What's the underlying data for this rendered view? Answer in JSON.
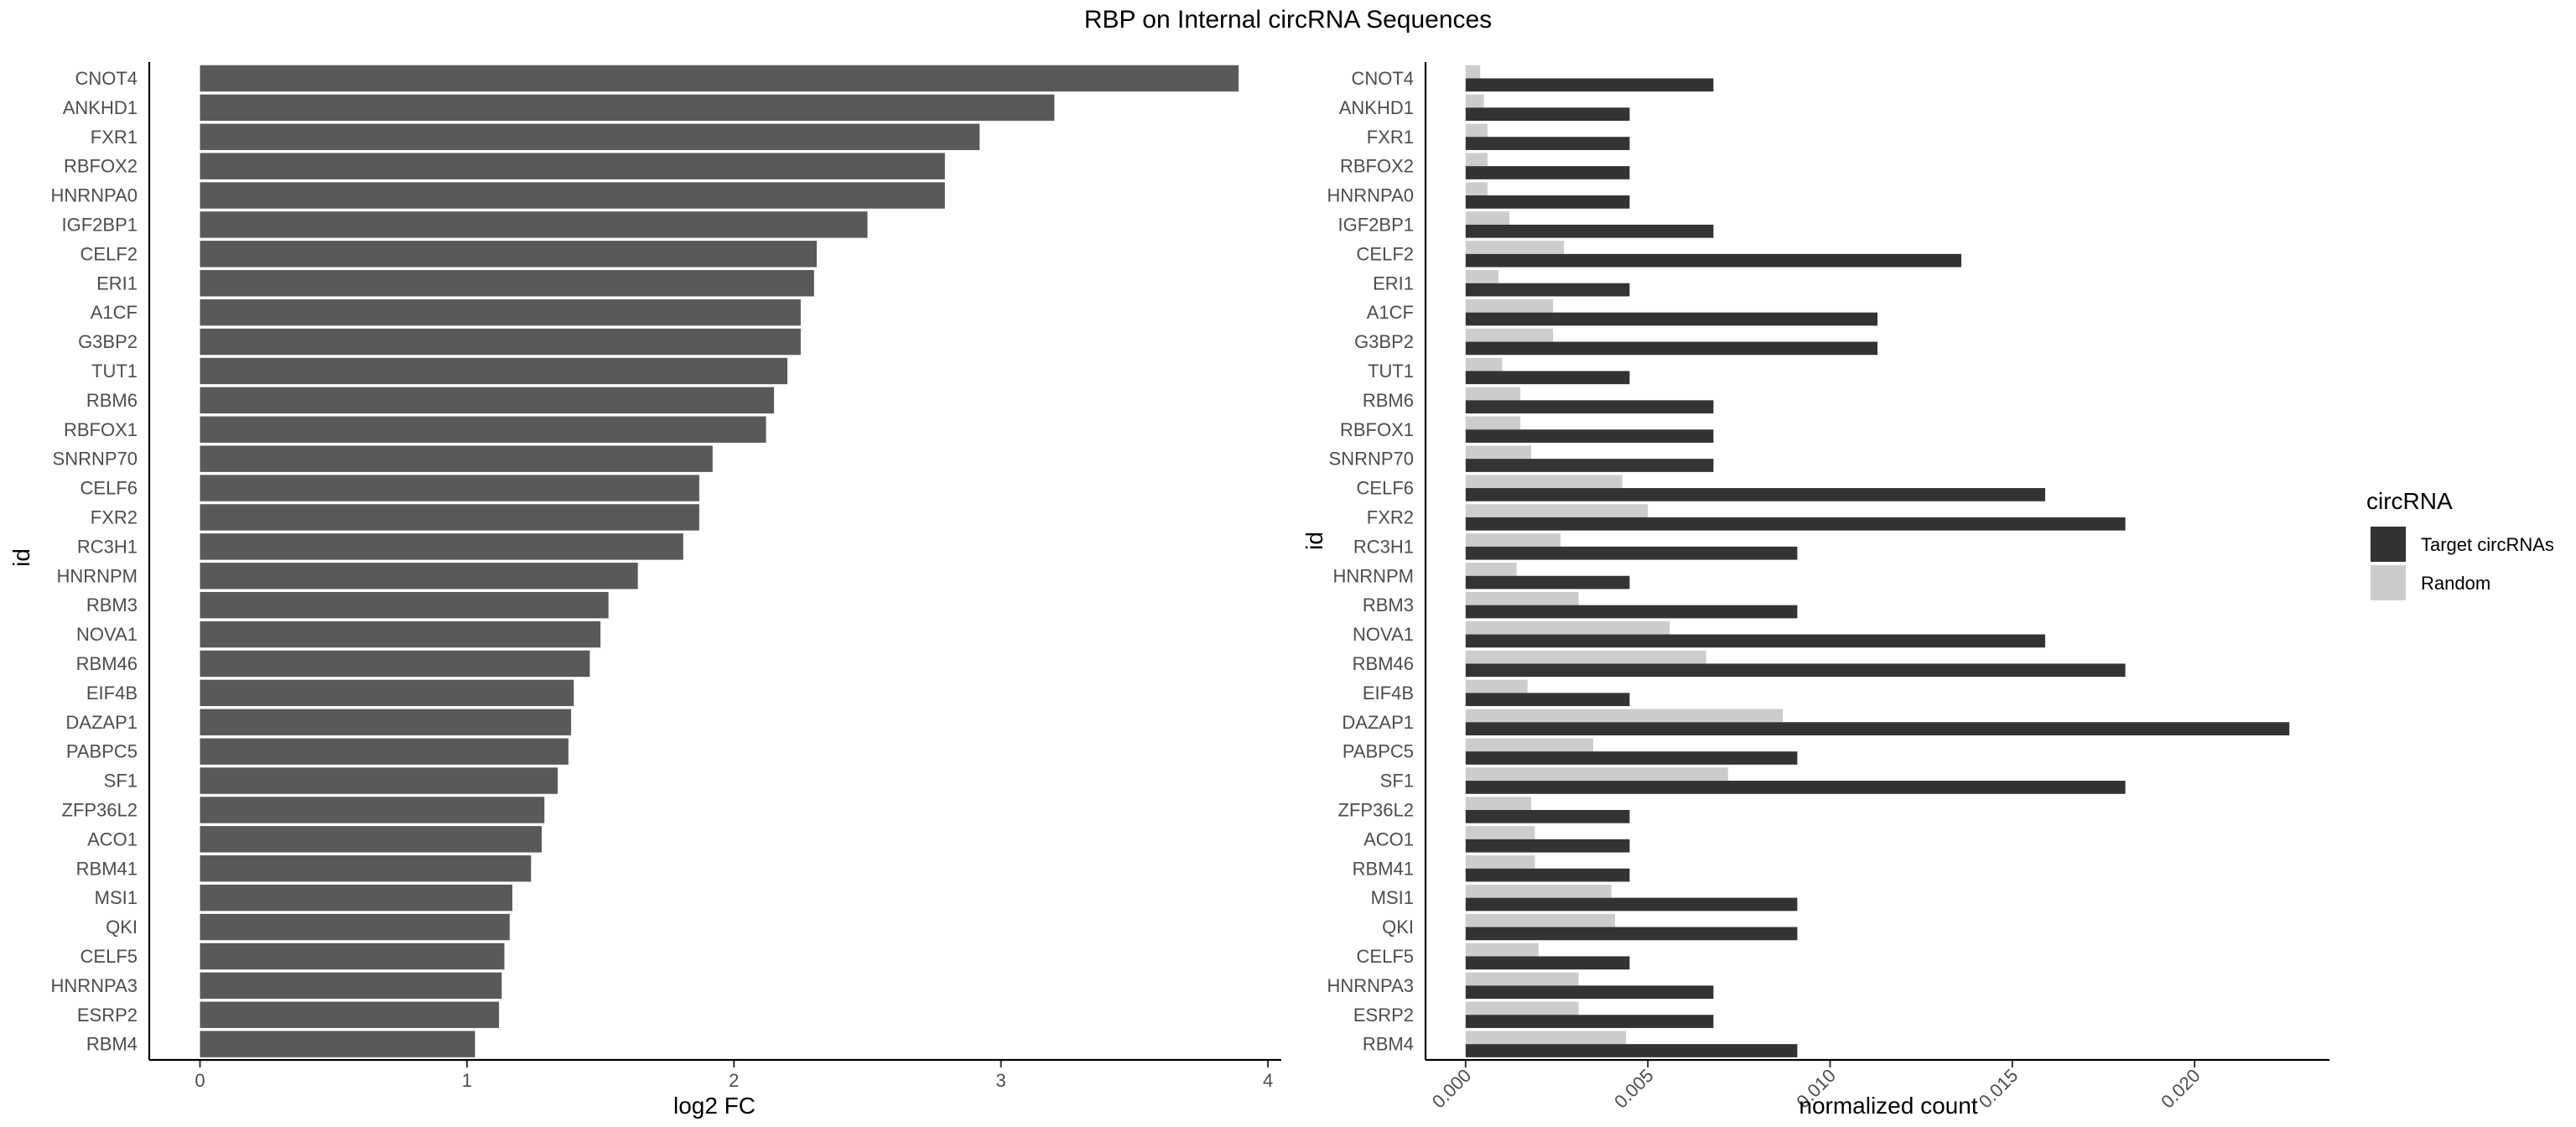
{
  "figure_title": "RBP on Internal circRNA Sequences",
  "colors": {
    "bar_left": "#595959",
    "target": "#333333",
    "random": "#cccccc",
    "axis": "#000000",
    "tick_text": "#4d4d4d"
  },
  "chart_data": [
    {
      "type": "bar",
      "orientation": "horizontal",
      "categories": [
        "CNOT4",
        "ANKHD1",
        "FXR1",
        "RBFOX2",
        "HNRNPA0",
        "IGF2BP1",
        "CELF2",
        "ERI1",
        "A1CF",
        "G3BP2",
        "TUT1",
        "RBM6",
        "RBFOX1",
        "SNRNP70",
        "CELF6",
        "FXR2",
        "RC3H1",
        "HNRNPM",
        "RBM3",
        "NOVA1",
        "RBM46",
        "EIF4B",
        "DAZAP1",
        "PABPC5",
        "SF1",
        "ZFP36L2",
        "ACO1",
        "RBM41",
        "MSI1",
        "QKI",
        "CELF5",
        "HNRNPA3",
        "ESRP2",
        "RBM4"
      ],
      "values": [
        3.89,
        3.2,
        2.92,
        2.79,
        2.79,
        2.5,
        2.31,
        2.3,
        2.25,
        2.25,
        2.2,
        2.15,
        2.12,
        1.92,
        1.87,
        1.87,
        1.81,
        1.64,
        1.53,
        1.5,
        1.46,
        1.4,
        1.39,
        1.38,
        1.34,
        1.29,
        1.28,
        1.24,
        1.17,
        1.16,
        1.14,
        1.13,
        1.12,
        1.03
      ],
      "xlabel": "log2 FC",
      "ylabel": "id",
      "xlim": [
        -0.19,
        4.05
      ],
      "xticks": [
        0,
        1,
        2,
        3,
        4
      ],
      "xtick_labels": [
        "0",
        "1",
        "2",
        "3",
        "4"
      ],
      "grid": false
    },
    {
      "type": "bar",
      "orientation": "horizontal",
      "categories": [
        "CNOT4",
        "ANKHD1",
        "FXR1",
        "RBFOX2",
        "HNRNPA0",
        "IGF2BP1",
        "CELF2",
        "ERI1",
        "A1CF",
        "G3BP2",
        "TUT1",
        "RBM6",
        "RBFOX1",
        "SNRNP70",
        "CELF6",
        "FXR2",
        "RC3H1",
        "HNRNPM",
        "RBM3",
        "NOVA1",
        "RBM46",
        "EIF4B",
        "DAZAP1",
        "PABPC5",
        "SF1",
        "ZFP36L2",
        "ACO1",
        "RBM41",
        "MSI1",
        "QKI",
        "CELF5",
        "HNRNPA3",
        "ESRP2",
        "RBM4"
      ],
      "series": [
        {
          "name": "Target circRNAs",
          "values": [
            0.0068,
            0.0045,
            0.0045,
            0.0045,
            0.0045,
            0.0068,
            0.0136,
            0.0045,
            0.0113,
            0.0113,
            0.0045,
            0.0068,
            0.0068,
            0.0068,
            0.0159,
            0.0181,
            0.0091,
            0.0045,
            0.0091,
            0.0159,
            0.0181,
            0.0045,
            0.0226,
            0.0091,
            0.0181,
            0.0045,
            0.0045,
            0.0045,
            0.0091,
            0.0091,
            0.0045,
            0.0068,
            0.0068,
            0.0091
          ]
        },
        {
          "name": "Random",
          "values": [
            0.0004,
            0.0005,
            0.0006,
            0.0006,
            0.0006,
            0.0012,
            0.0027,
            0.0009,
            0.0024,
            0.0024,
            0.001,
            0.0015,
            0.0015,
            0.0018,
            0.0043,
            0.005,
            0.0026,
            0.0014,
            0.0031,
            0.0056,
            0.0066,
            0.0017,
            0.0087,
            0.0035,
            0.0072,
            0.0018,
            0.0019,
            0.0019,
            0.004,
            0.0041,
            0.002,
            0.0031,
            0.0031,
            0.0044
          ]
        }
      ],
      "xlabel": "normalized count",
      "ylabel": "id",
      "xlim": [
        -0.0011,
        0.0237
      ],
      "xticks": [
        0,
        0.005,
        0.01,
        0.015,
        0.02
      ],
      "xtick_labels": [
        "0.000",
        "0.005",
        "0.010",
        "0.015",
        "0.020"
      ],
      "legend_title": "circRNA",
      "legend_position": "right",
      "grid": false
    }
  ]
}
